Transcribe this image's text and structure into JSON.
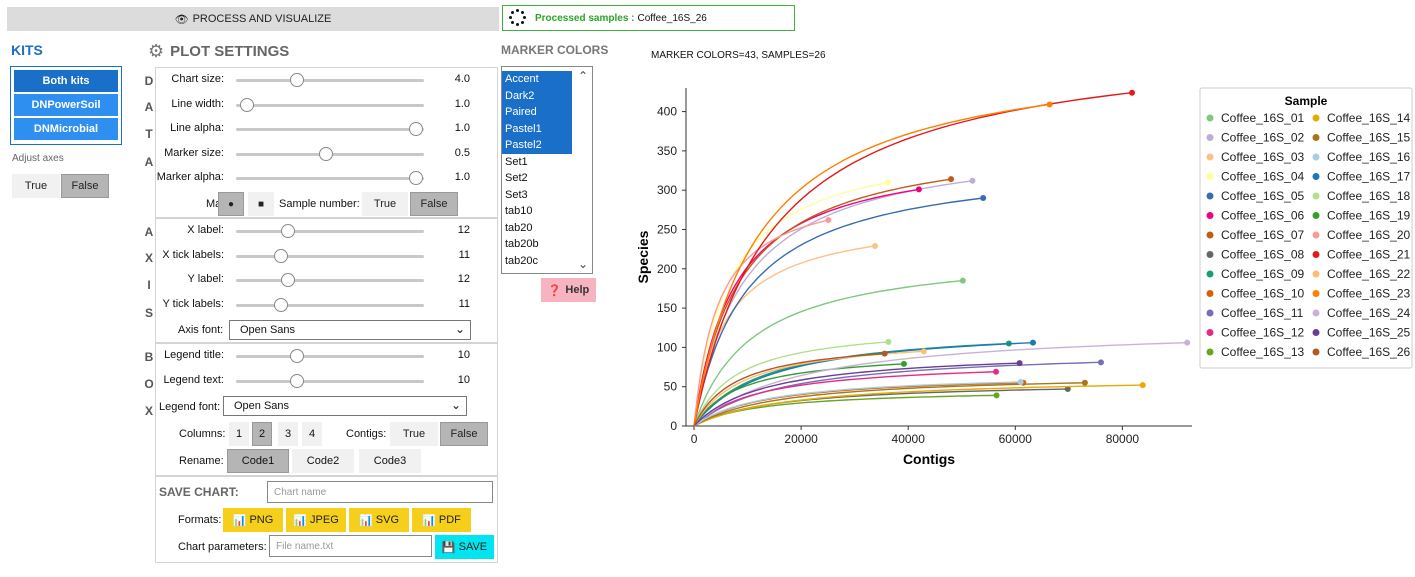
{
  "top": {
    "process_label": "PROCESS AND VISUALIZE",
    "status_label": "Processed samples :",
    "status_value": "Coffee_16S_26"
  },
  "kits": {
    "title": "KITS",
    "items": [
      "Both kits",
      "DNPowerSoil",
      "DNMicrobial"
    ],
    "selected": "Both kits",
    "adjust_axes_label": "Adjust axes",
    "true_label": "True",
    "false_label": "False",
    "adjust_axes_value": "False"
  },
  "plot_settings": {
    "title": "PLOT SETTINGS",
    "sections": {
      "data": "DATA",
      "axis": "AXIS",
      "box": "BOX"
    },
    "data_sliders": [
      {
        "label": "Chart size:",
        "value": "4.0",
        "pos": 0.34
      },
      {
        "label": "Line width:",
        "value": "1.0",
        "pos": 0.06
      },
      {
        "label": "Line alpha:",
        "value": "1.0",
        "pos": 1.0
      },
      {
        "label": "Marker size:",
        "value": "0.5",
        "pos": 0.5
      },
      {
        "label": "Marker alpha:",
        "value": "1.0",
        "pos": 1.0
      }
    ],
    "marker_label": "Marker:",
    "marker_options": [
      "●",
      "■"
    ],
    "marker_selected": "●",
    "sample_number_label": "Sample number:",
    "sample_number_value": "False",
    "axis_sliders": [
      {
        "label": "X label:",
        "value": "12",
        "pos": 0.29
      },
      {
        "label": "X tick labels:",
        "value": "11",
        "pos": 0.25
      },
      {
        "label": "Y label:",
        "value": "12",
        "pos": 0.29
      },
      {
        "label": "Y tick labels:",
        "value": "11",
        "pos": 0.25
      }
    ],
    "axis_font_label": "Axis font:",
    "axis_font_value": "Open Sans",
    "box_sliders": [
      {
        "label": "Legend title:",
        "value": "10",
        "pos": 0.34
      },
      {
        "label": "Legend text:",
        "value": "10",
        "pos": 0.34
      }
    ],
    "legend_font_label": "Legend font:",
    "legend_font_value": "Open Sans",
    "columns_label": "Columns:",
    "columns_options": [
      "1",
      "2",
      "3",
      "4"
    ],
    "columns_selected": "2",
    "contigs_label": "Contigs:",
    "contigs_value": "False",
    "rename_label": "Rename:",
    "rename_options": [
      "Code1",
      "Code2",
      "Code3"
    ],
    "rename_selected": "Code1"
  },
  "save_chart": {
    "title": "SAVE CHART:",
    "name_placeholder": "Chart name",
    "formats_label": "Formats:",
    "formats": [
      "PNG",
      "JPEG",
      "SVG",
      "PDF"
    ],
    "params_label": "Chart parameters:",
    "params_placeholder": "File name.txt",
    "save_label": "SAVE"
  },
  "marker_colors": {
    "title": "MARKER COLORS",
    "items": [
      "Accent",
      "Dark2",
      "Paired",
      "Pastel1",
      "Pastel2",
      "Set1",
      "Set2",
      "Set3",
      "tab10",
      "tab20",
      "tab20b",
      "tab20c"
    ],
    "selected": [
      "Accent",
      "Dark2",
      "Paired",
      "Pastel1",
      "Pastel2"
    ],
    "help_label": "Help"
  },
  "chart_header": "MARKER COLORS=43, SAMPLES=26",
  "chart_data": {
    "type": "line",
    "xlabel": "Contigs",
    "ylabel": "Species",
    "xlim": [
      -1500,
      93000
    ],
    "ylim": [
      0,
      430
    ],
    "xticks": [
      0,
      20000,
      40000,
      60000,
      80000
    ],
    "yticks": [
      0,
      50,
      100,
      150,
      200,
      250,
      300,
      350,
      400
    ],
    "legend_title": "Sample",
    "legend_position": "right",
    "series": [
      {
        "name": "Coffee_16S_01",
        "color": "#7fc97f",
        "x_end": 50200,
        "y_end": 185
      },
      {
        "name": "Coffee_16S_02",
        "color": "#beaed4",
        "x_end": 52000,
        "y_end": 312
      },
      {
        "name": "Coffee_16S_03",
        "color": "#fdc086",
        "x_end": 33800,
        "y_end": 229
      },
      {
        "name": "Coffee_16S_04",
        "color": "#ffff99",
        "x_end": 36300,
        "y_end": 310
      },
      {
        "name": "Coffee_16S_05",
        "color": "#386cb0",
        "x_end": 54000,
        "y_end": 290
      },
      {
        "name": "Coffee_16S_06",
        "color": "#f0027f",
        "x_end": 42000,
        "y_end": 301
      },
      {
        "name": "Coffee_16S_07",
        "color": "#bf5b17",
        "x_end": 48000,
        "y_end": 314
      },
      {
        "name": "Coffee_16S_08",
        "color": "#666666",
        "x_end": 69800,
        "y_end": 47
      },
      {
        "name": "Coffee_16S_09",
        "color": "#1b9e77",
        "x_end": 58800,
        "y_end": 105
      },
      {
        "name": "Coffee_16S_10",
        "color": "#d95f02",
        "x_end": 61500,
        "y_end": 55
      },
      {
        "name": "Coffee_16S_11",
        "color": "#7570b3",
        "x_end": 76000,
        "y_end": 81
      },
      {
        "name": "Coffee_16S_12",
        "color": "#e7298a",
        "x_end": 56400,
        "y_end": 69
      },
      {
        "name": "Coffee_16S_13",
        "color": "#66a61e",
        "x_end": 56500,
        "y_end": 39
      },
      {
        "name": "Coffee_16S_14",
        "color": "#e6ab02",
        "x_end": 83800,
        "y_end": 52
      },
      {
        "name": "Coffee_16S_15",
        "color": "#a6761d",
        "x_end": 73000,
        "y_end": 55
      },
      {
        "name": "Coffee_16S_16",
        "color": "#a6cee3",
        "x_end": 61000,
        "y_end": 56
      },
      {
        "name": "Coffee_16S_17",
        "color": "#1f78b4",
        "x_end": 63300,
        "y_end": 106
      },
      {
        "name": "Coffee_16S_18",
        "color": "#b2df8a",
        "x_end": 36300,
        "y_end": 107
      },
      {
        "name": "Coffee_16S_19",
        "color": "#33a02c",
        "x_end": 39200,
        "y_end": 79
      },
      {
        "name": "Coffee_16S_20",
        "color": "#fb9a99",
        "x_end": 25100,
        "y_end": 262
      },
      {
        "name": "Coffee_16S_21",
        "color": "#e31a1c",
        "x_end": 81800,
        "y_end": 424
      },
      {
        "name": "Coffee_16S_22",
        "color": "#fdbf6f",
        "x_end": 42900,
        "y_end": 95
      },
      {
        "name": "Coffee_16S_23",
        "color": "#ff7f00",
        "x_end": 66400,
        "y_end": 409
      },
      {
        "name": "Coffee_16S_24",
        "color": "#cab2d6",
        "x_end": 92100,
        "y_end": 106
      },
      {
        "name": "Coffee_16S_25",
        "color": "#6a3d9a",
        "x_end": 60800,
        "y_end": 80
      },
      {
        "name": "Coffee_16S_26",
        "color": "#b15928",
        "x_end": 35600,
        "y_end": 92
      }
    ]
  }
}
